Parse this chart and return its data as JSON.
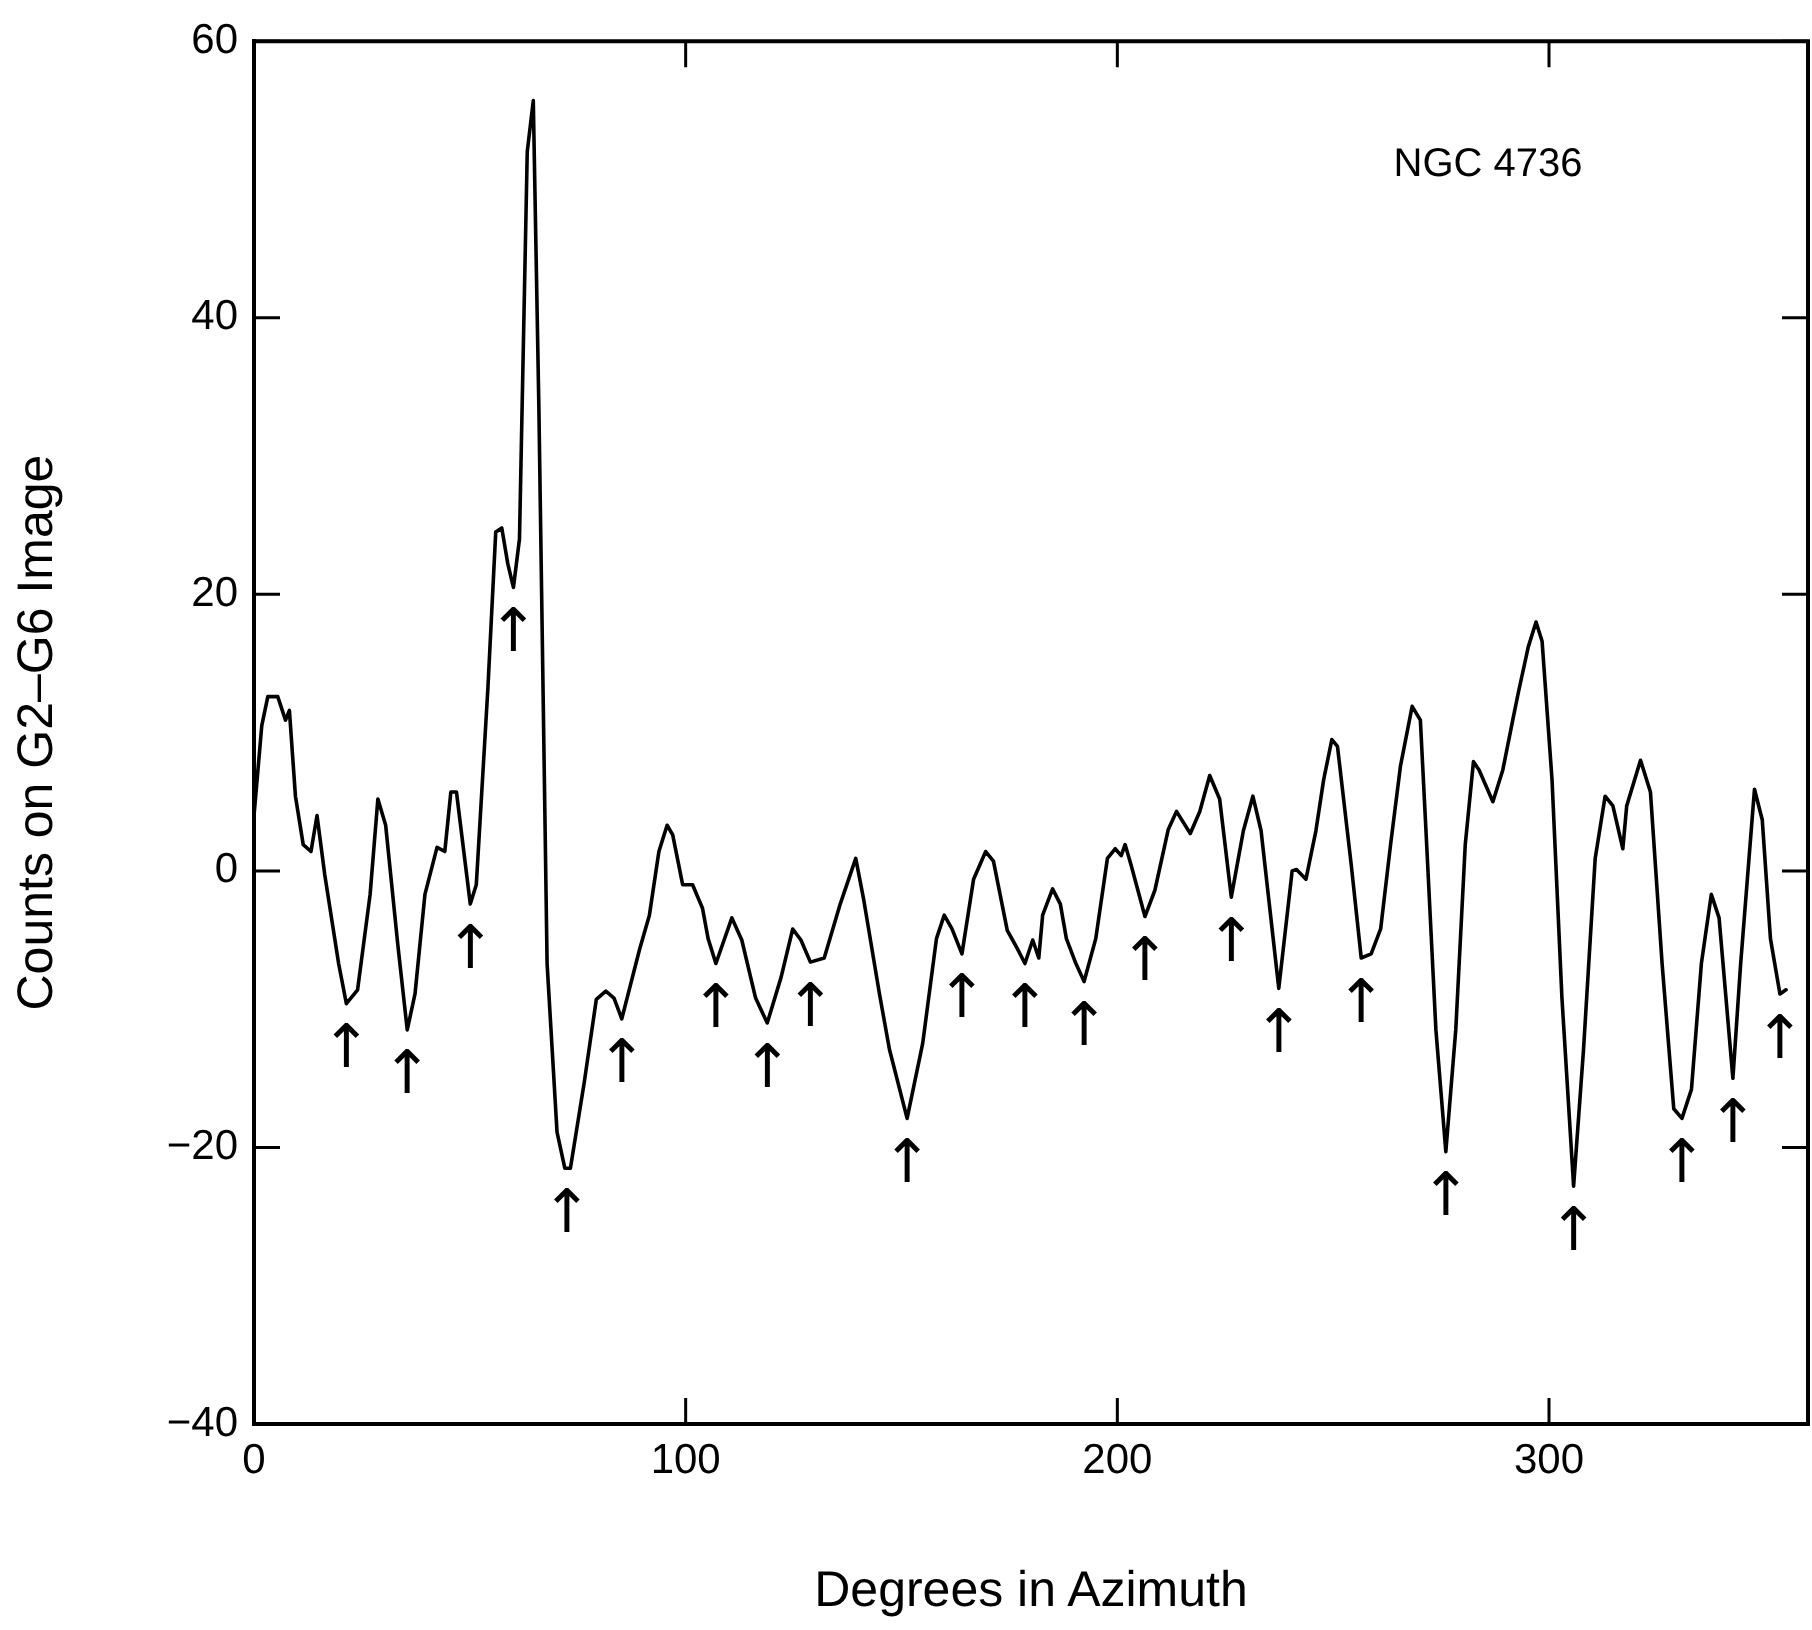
{
  "chart_data": {
    "type": "line",
    "xlabel": "Degrees in Azimuth",
    "ylabel": "Counts on G2–G6 Image",
    "xlim": [
      0,
      360
    ],
    "xticks": [
      0,
      100,
      200,
      300
    ],
    "ylim": [
      -40,
      60
    ],
    "yticks": [
      {
        "value": -40,
        "label": "−40"
      },
      {
        "value": -20,
        "label": "−20"
      },
      0,
      20,
      40,
      60
    ],
    "grid": false,
    "legend": false,
    "series": [
      {
        "color": "#000000",
        "x": [
          0,
          1.8,
          3.2,
          5.5,
          7.3,
          8.2,
          9.6,
          11.4,
          13.2,
          14.6,
          16.4,
          19.6,
          21.4,
          24,
          26.9,
          28.7,
          30.5,
          33.3,
          35.5,
          37.3,
          39.6,
          42.4,
          44.2,
          45.6,
          46.9,
          50.1,
          51.5,
          54.2,
          56,
          57.4,
          58.8,
          60.1,
          61.5,
          63.3,
          64.7,
          66,
          67.9,
          70.2,
          72,
          73.3,
          76.5,
          79.3,
          81.5,
          83.4,
          85.2,
          89.3,
          91.6,
          93.8,
          95.7,
          97,
          99.3,
          101.6,
          103.9,
          105.2,
          107,
          110.7,
          113,
          116.2,
          118.9,
          122.1,
          124.8,
          126.7,
          128.9,
          132.1,
          135.8,
          139.4,
          141.2,
          144.9,
          147.2,
          151.3,
          154.9,
          158.1,
          159.9,
          161.7,
          164,
          166.7,
          169.5,
          171.3,
          174.5,
          176.8,
          178.6,
          180.4,
          181.8,
          182.7,
          185,
          186.8,
          188.2,
          190.4,
          192.3,
          195,
          197.7,
          199.5,
          200.9,
          201.8,
          203.2,
          206.4,
          208.7,
          211.8,
          213.7,
          216.9,
          219.1,
          221.4,
          223.7,
          226.4,
          229.2,
          231.4,
          233.3,
          237.4,
          240.5,
          241.5,
          243.7,
          246,
          247.8,
          249.7,
          251,
          254.2,
          256.5,
          258.8,
          261,
          263.3,
          265.6,
          268.3,
          270.2,
          271.5,
          273.8,
          276.1,
          278.4,
          280.6,
          282.5,
          283.8,
          287,
          289.3,
          291.6,
          292.9,
          295.2,
          297,
          298.4,
          300.7,
          303,
          305.7,
          308,
          310.7,
          313,
          314.8,
          317.1,
          318,
          321.2,
          323.5,
          326.2,
          328.9,
          330.8,
          333,
          335.3,
          337.6,
          339.4,
          342.6,
          344.4,
          347.6,
          349.4,
          351.3,
          353.5,
          354.9
        ],
        "values": [
          4,
          10.5,
          12.6,
          12.6,
          10.9,
          11.6,
          5.4,
          1.9,
          1.4,
          4,
          -0.3,
          -6.7,
          -9.6,
          -8.6,
          -1.7,
          5.2,
          3.3,
          -5.3,
          -11.5,
          -8.9,
          -1.7,
          1.7,
          1.4,
          5.7,
          5.7,
          -2.4,
          -1,
          13.3,
          24.5,
          24.8,
          22.2,
          20.5,
          24,
          52,
          55.7,
          33.4,
          -6.7,
          -18.9,
          -21.5,
          -21.5,
          -15.3,
          -9.3,
          -8.7,
          -9.2,
          -10.7,
          -5.7,
          -3.2,
          1.4,
          3.3,
          2.6,
          -1,
          -1,
          -2.7,
          -4.9,
          -6.7,
          -3.4,
          -5,
          -9.2,
          -11,
          -7.7,
          -4.2,
          -5,
          -6.6,
          -6.3,
          -2.4,
          0.9,
          -2,
          -8.9,
          -12.9,
          -17.9,
          -12.5,
          -4.9,
          -3.2,
          -4.2,
          -6,
          -0.6,
          1.4,
          0.7,
          -4.3,
          -5.6,
          -6.7,
          -5,
          -6.3,
          -3.2,
          -1.3,
          -2.4,
          -4.9,
          -6.7,
          -8,
          -4.9,
          0.9,
          1.6,
          1.1,
          1.9,
          0.4,
          -3.3,
          -1.4,
          3,
          4.3,
          2.7,
          4.3,
          6.9,
          5.2,
          -1.9,
          2.9,
          5.4,
          2.9,
          -8.5,
          0,
          0.1,
          -0.6,
          2.9,
          6.6,
          9.5,
          9,
          0.4,
          -6.3,
          -6,
          -4.2,
          1.9,
          7.6,
          11.9,
          10.9,
          2.9,
          -11.5,
          -20.3,
          -11.5,
          1.9,
          7.9,
          7.3,
          5,
          7.3,
          10.9,
          12.9,
          16.2,
          18,
          16.6,
          6.6,
          -9.2,
          -22.8,
          -12.9,
          0.9,
          5.4,
          4.7,
          1.6,
          4.7,
          8,
          5.7,
          -6.7,
          -17.2,
          -17.9,
          -15.8,
          -6.7,
          -1.7,
          -3.4,
          -15,
          -6.7,
          5.9,
          3.7,
          -4.9,
          -8.9,
          -8.6
        ]
      }
    ],
    "annotations": [
      "NGC 4736",
      {
        "text": "↑",
        "x": 21.4,
        "y": -9.6
      },
      {
        "text": "↑",
        "x": 35.5,
        "y": -11.5
      },
      {
        "text": "↑",
        "x": 50.1,
        "y": -2.4
      },
      {
        "text": "↑",
        "x": 60.1,
        "y": 20.5
      },
      {
        "text": "↑",
        "x": 72.5,
        "y": -21.5
      },
      {
        "text": "↑",
        "x": 85.2,
        "y": -10.7
      },
      {
        "text": "↑",
        "x": 107,
        "y": -6.7
      },
      {
        "text": "↑",
        "x": 118.9,
        "y": -11
      },
      {
        "text": "↑",
        "x": 128.9,
        "y": -6.6
      },
      {
        "text": "↑",
        "x": 151.3,
        "y": -17.9
      },
      {
        "text": "↑",
        "x": 164,
        "y": -6
      },
      {
        "text": "↑",
        "x": 178.6,
        "y": -6.7
      },
      {
        "text": "↑",
        "x": 192.3,
        "y": -8
      },
      {
        "text": "↑",
        "x": 206.4,
        "y": -3.3
      },
      {
        "text": "↑",
        "x": 226.4,
        "y": -1.9
      },
      {
        "text": "↑",
        "x": 237.4,
        "y": -8.5
      },
      {
        "text": "↑",
        "x": 256.5,
        "y": -6.3
      },
      {
        "text": "↑",
        "x": 276.1,
        "y": -20.3
      },
      {
        "text": "↑",
        "x": 305.7,
        "y": -22.8
      },
      {
        "text": "↑",
        "x": 330.8,
        "y": -17.9
      },
      {
        "text": "↑",
        "x": 342.6,
        "y": -15
      },
      {
        "text": "↑",
        "x": 353.5,
        "y": -8.9
      }
    ]
  }
}
